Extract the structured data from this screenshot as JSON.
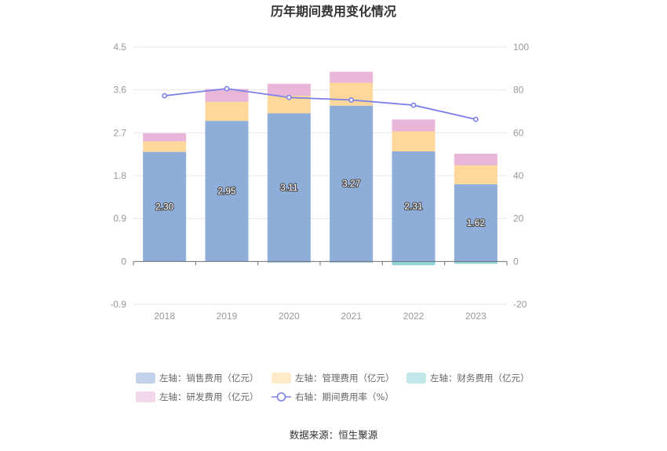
{
  "chart_data": {
    "type": "bar",
    "title": "历年期间费用变化情况",
    "source": "数据来源：恒生聚源",
    "categories": [
      "2018",
      "2019",
      "2020",
      "2021",
      "2022",
      "2023"
    ],
    "left_axis": {
      "min": -0.9,
      "max": 4.5,
      "ticks": [
        "4.5",
        "3.6",
        "2.7",
        "1.8",
        "0.9",
        "0",
        "-0.9"
      ]
    },
    "right_axis": {
      "min": -20,
      "max": 100,
      "ticks": [
        "100",
        "80",
        "60",
        "40",
        "20",
        "0",
        "-20"
      ]
    },
    "series": [
      {
        "name": "左轴：销售费用（亿元）",
        "type": "bar",
        "axis": "left",
        "color": "#8fadd9",
        "values": [
          2.3,
          2.95,
          3.11,
          3.27,
          2.31,
          1.62
        ],
        "labels": [
          "2.30",
          "2.95",
          "3.11",
          "3.27",
          "2.31",
          "1.62"
        ]
      },
      {
        "name": "左轴：管理费用（亿元）",
        "type": "bar",
        "axis": "left",
        "color": "#fdd89a",
        "values": [
          0.22,
          0.4,
          0.37,
          0.48,
          0.42,
          0.4
        ]
      },
      {
        "name": "左轴：财务费用（亿元）",
        "type": "bar",
        "axis": "left",
        "color": "#8fd3d6",
        "values": [
          0.0,
          0.0,
          -0.02,
          -0.01,
          -0.08,
          -0.05
        ]
      },
      {
        "name": "左轴：研发费用（亿元）",
        "type": "bar",
        "axis": "left",
        "color": "#e8b6d8",
        "values": [
          0.17,
          0.27,
          0.25,
          0.23,
          0.25,
          0.24
        ]
      },
      {
        "name": "右轴：期间费用率（%）",
        "type": "line",
        "axis": "right",
        "color": "#7b80ea",
        "values": [
          77.3,
          80.6,
          76.5,
          75.3,
          72.9,
          66.3
        ]
      }
    ],
    "legend_position": "bottom",
    "grid": true
  }
}
